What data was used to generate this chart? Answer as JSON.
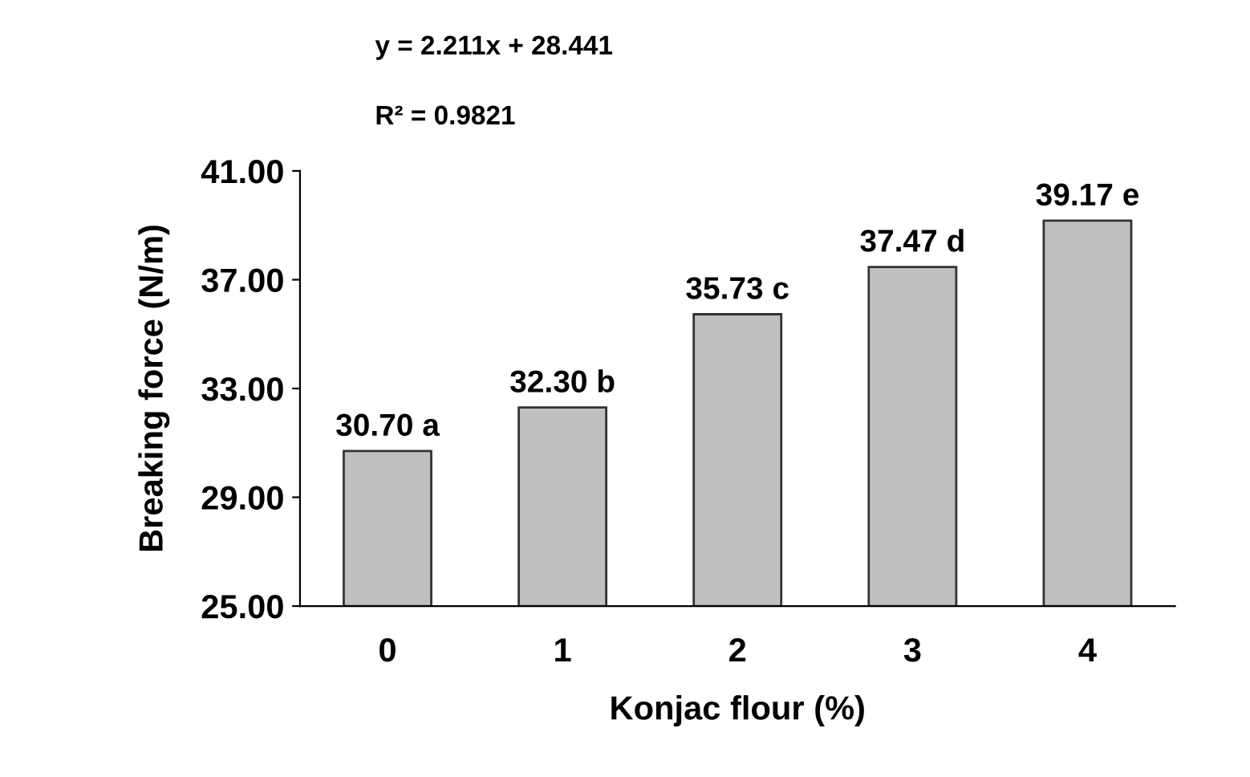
{
  "chart_data": {
    "type": "bar",
    "xlabel": "Konjac flour (%)",
    "ylabel": "Breaking force (N/m)",
    "categories": [
      "0",
      "1",
      "2",
      "3",
      "4"
    ],
    "values": [
      30.7,
      32.3,
      35.73,
      37.47,
      39.17
    ],
    "value_labels": [
      "30.70 a",
      "32.30 b",
      "35.73 c",
      "37.47 d",
      "39.17 e"
    ],
    "color": "#c0c0c0",
    "ylim": [
      25,
      41
    ],
    "yticks": [
      {
        "value": 25,
        "label": "25.00"
      },
      {
        "value": 29,
        "label": "29.00"
      },
      {
        "value": 33,
        "label": "33.00"
      },
      {
        "value": 37,
        "label": "37.00"
      },
      {
        "value": 41,
        "label": "41.00"
      }
    ],
    "annotations": [
      "y = 2.211x + 28.441",
      "R² = 0.9821"
    ],
    "grid": false,
    "legend": false
  }
}
